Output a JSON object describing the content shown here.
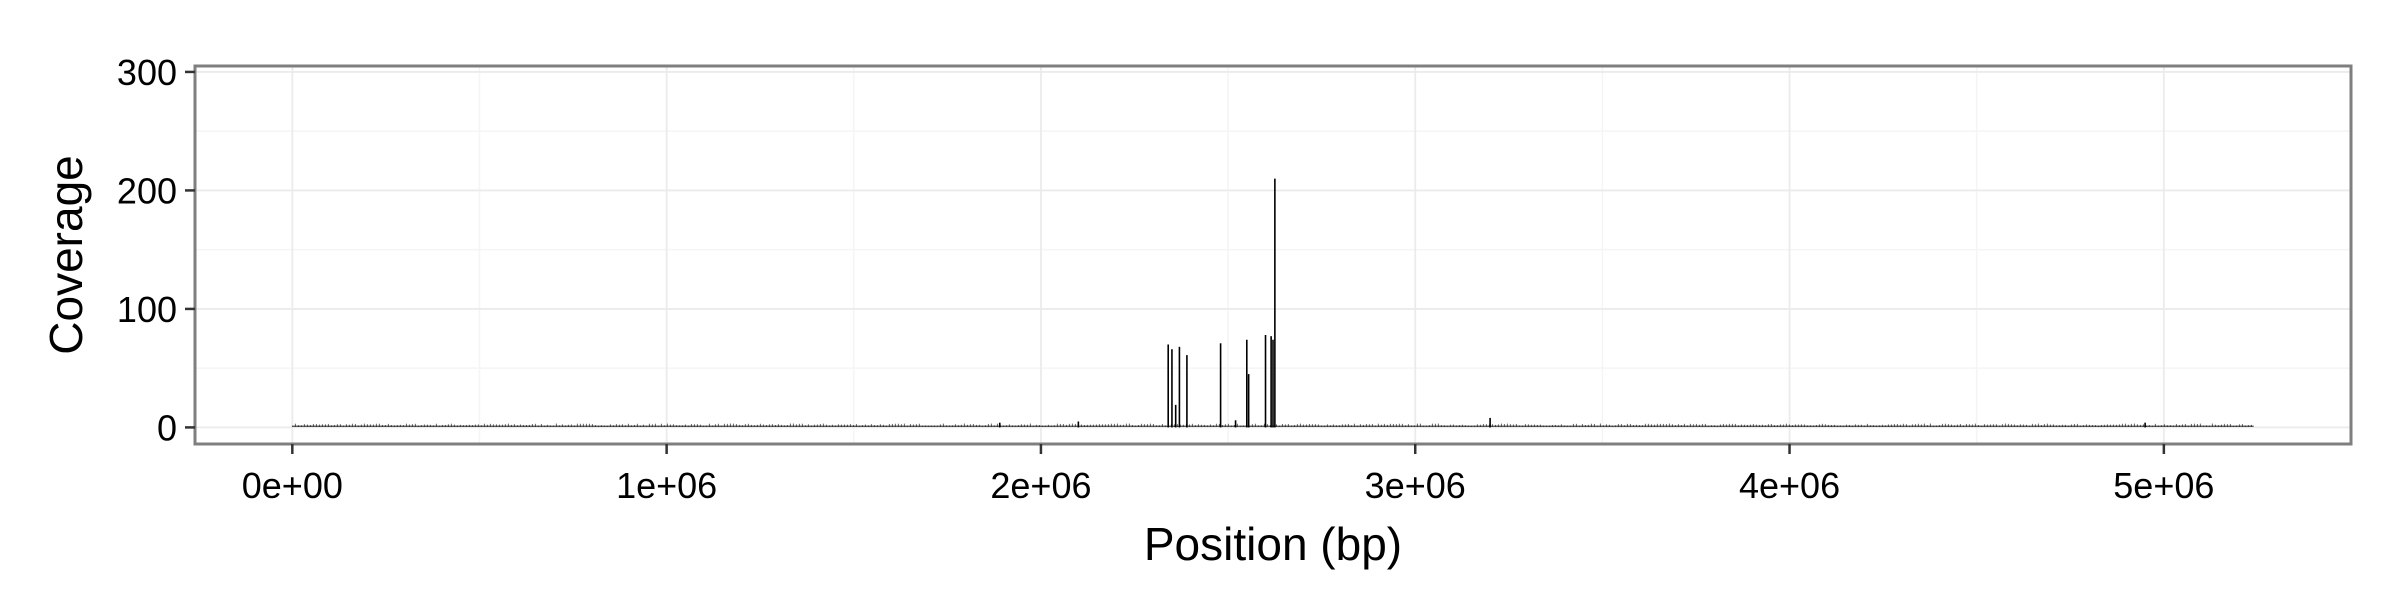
{
  "chart_data": {
    "type": "bar",
    "title": "",
    "xlabel": "Position (bp)",
    "ylabel": "Coverage",
    "xlim": [
      -260000,
      5500000
    ],
    "ylim": [
      -14,
      305
    ],
    "x_ticks": [
      0,
      1000000,
      2000000,
      3000000,
      4000000,
      5000000
    ],
    "x_tick_labels": [
      "0e+00",
      "1e+06",
      "2e+06",
      "3e+06",
      "4e+06",
      "5e+06"
    ],
    "y_ticks": [
      0,
      100,
      200,
      300
    ],
    "y_tick_labels": [
      "0",
      "100",
      "200",
      "300"
    ],
    "x_minor_ticks": [
      500000,
      1500000,
      2500000,
      3500000,
      4500000
    ],
    "y_minor_ticks": [
      50,
      150,
      250
    ],
    "grid": true,
    "legend": "none",
    "baseline_extent": [
      0,
      5240000
    ],
    "baseline_value": 1,
    "x": [
      1890000,
      2100000,
      2340000,
      2350000,
      2360000,
      2370000,
      2390000,
      2480000,
      2520000,
      2550000,
      2555000,
      2600000,
      2615000,
      2620000,
      2625000,
      3200000,
      4950000
    ],
    "values": [
      4,
      5,
      70,
      66,
      19,
      68,
      61,
      71,
      6,
      74,
      45,
      78,
      77,
      74,
      210,
      8,
      4
    ],
    "colors": {
      "line": "#000000",
      "panel_border": "#7f7f7f",
      "grid_major": "#ebebeb",
      "grid_minor": "#f5f5f5",
      "background": "#ffffff"
    }
  }
}
